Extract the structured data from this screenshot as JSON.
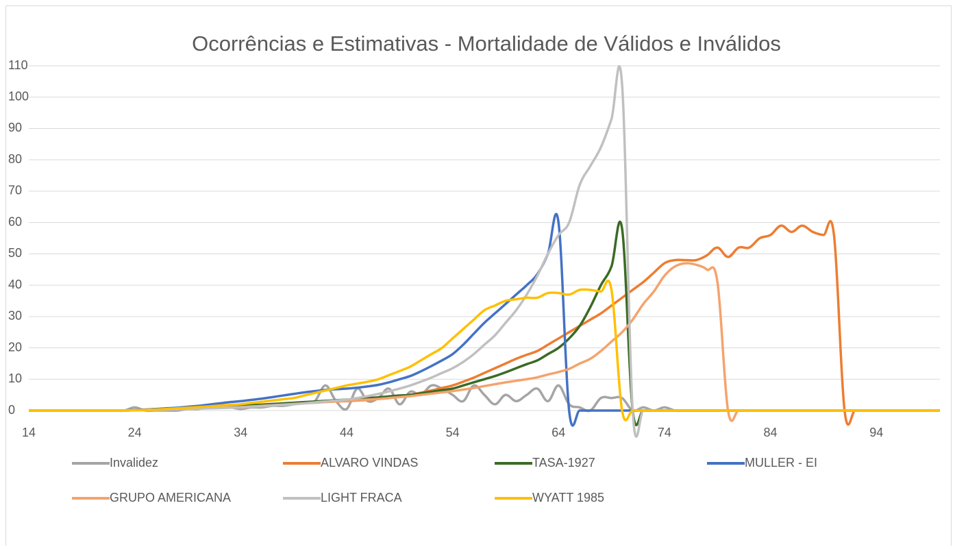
{
  "chart_data": {
    "type": "line",
    "title": "Ocorrências e Estimativas - Mortalidade de Válidos e Inválidos",
    "x": [
      14,
      15,
      16,
      17,
      18,
      19,
      20,
      21,
      22,
      23,
      24,
      25,
      26,
      27,
      28,
      29,
      30,
      31,
      32,
      33,
      34,
      35,
      36,
      37,
      38,
      39,
      40,
      41,
      42,
      43,
      44,
      45,
      46,
      47,
      48,
      49,
      50,
      51,
      52,
      53,
      54,
      55,
      56,
      57,
      58,
      59,
      60,
      61,
      62,
      63,
      64,
      65,
      66,
      67,
      68,
      69,
      70,
      71,
      72,
      73,
      74,
      75,
      76,
      77,
      78,
      79,
      80,
      81,
      82,
      83,
      84,
      85,
      86,
      87,
      88,
      89,
      90,
      91,
      92,
      93,
      94,
      95,
      96,
      97,
      98,
      99,
      100
    ],
    "xlim": [
      14,
      100
    ],
    "xticks": [
      14,
      24,
      34,
      44,
      54,
      64,
      74,
      84,
      94
    ],
    "ylim": [
      0,
      110
    ],
    "yticks": [
      0,
      10,
      20,
      30,
      40,
      50,
      60,
      70,
      80,
      90,
      100,
      110
    ],
    "grid": true,
    "legend": "bottom",
    "series": [
      {
        "name": "Invalidez",
        "color": "#a5a5a5",
        "values": [
          0,
          0,
          0,
          0,
          0,
          0,
          0,
          0,
          0,
          0,
          1,
          0,
          0,
          0,
          0,
          0.5,
          0.5,
          1,
          1,
          1,
          0.5,
          1,
          1,
          1.5,
          1.5,
          2,
          2.5,
          3,
          8,
          3,
          0.5,
          7,
          3,
          4,
          7,
          2,
          6,
          5,
          8,
          7,
          5,
          3,
          8,
          5,
          2,
          5,
          3,
          5,
          7,
          3,
          8,
          2,
          1,
          0,
          4,
          4,
          4,
          0,
          1,
          0,
          1,
          0,
          0,
          0,
          0,
          0,
          0,
          0,
          0,
          0,
          0,
          0,
          0,
          0,
          0,
          0,
          0,
          0,
          0,
          0,
          0,
          0,
          0,
          0,
          0,
          0,
          0
        ]
      },
      {
        "name": "ALVARO VINDAS",
        "color": "#ed7d31",
        "values": [
          0,
          0,
          0,
          0,
          0,
          0,
          0,
          0,
          0,
          0,
          0.2,
          0.3,
          0.4,
          0.5,
          0.6,
          0.8,
          1,
          1.1,
          1.2,
          1.4,
          1.5,
          1.7,
          1.8,
          2,
          2.2,
          2.4,
          2.5,
          2.7,
          2.8,
          2.9,
          3,
          3.2,
          3.4,
          3.7,
          4,
          4.5,
          5,
          5.7,
          6.4,
          7.2,
          8,
          9.2,
          10.5,
          12,
          13.5,
          15,
          16.5,
          17.8,
          19,
          21,
          23,
          25,
          27,
          29,
          31,
          33.5,
          36,
          38.5,
          41,
          44,
          47,
          48,
          48,
          48,
          49.5,
          52,
          49,
          52,
          52,
          55,
          56,
          59,
          57,
          59,
          57,
          56,
          56,
          0,
          0,
          0,
          0,
          0,
          0,
          0,
          0,
          0,
          0
        ]
      },
      {
        "name": "TASA-1927",
        "color": "#3a6b23",
        "values": [
          0,
          0,
          0,
          0,
          0,
          0,
          0,
          0,
          0,
          0,
          0.1,
          0.2,
          0.3,
          0.5,
          0.6,
          0.8,
          1,
          1.1,
          1.3,
          1.4,
          1.5,
          1.7,
          1.9,
          2.1,
          2.3,
          2.5,
          2.7,
          2.9,
          3.1,
          3.3,
          3.5,
          3.7,
          4,
          4.2,
          4.5,
          4.8,
          5,
          5.5,
          6,
          6.5,
          7,
          8,
          9,
          10,
          11,
          12.2,
          13.5,
          14.8,
          16,
          18,
          20,
          23,
          27,
          33,
          40,
          46,
          58,
          0,
          0,
          0,
          0,
          0,
          0,
          0,
          0,
          0,
          0,
          0,
          0,
          0,
          0,
          0,
          0,
          0,
          0,
          0,
          0,
          0,
          0,
          0,
          0,
          0,
          0,
          0,
          0,
          0,
          0
        ]
      },
      {
        "name": "MULLER - EI",
        "color": "#4472c4",
        "values": [
          0,
          0,
          0,
          0,
          0,
          0,
          0,
          0,
          0,
          0,
          0.2,
          0.3,
          0.5,
          0.7,
          0.9,
          1.2,
          1.5,
          1.9,
          2.3,
          2.7,
          3,
          3.4,
          3.8,
          4.3,
          4.8,
          5.3,
          5.8,
          6.2,
          6.6,
          6.8,
          7,
          7.3,
          7.7,
          8.2,
          9,
          10,
          11,
          12.5,
          14.2,
          16,
          18,
          21,
          24.5,
          28,
          31,
          34,
          37,
          40,
          43.5,
          50,
          60,
          0,
          0,
          0,
          0,
          0,
          0,
          0,
          0,
          0,
          0,
          0,
          0,
          0,
          0,
          0,
          0,
          0,
          0,
          0,
          0,
          0,
          0,
          0,
          0,
          0,
          0,
          0,
          0,
          0,
          0,
          0,
          0,
          0,
          0,
          0,
          0
        ]
      },
      {
        "name": "GRUPO AMERICANA",
        "color": "#f4a36c",
        "values": [
          0,
          0,
          0,
          0,
          0,
          0,
          0,
          0,
          0,
          0,
          0.1,
          0.2,
          0.3,
          0.4,
          0.5,
          0.6,
          0.7,
          0.8,
          0.9,
          1,
          1.1,
          1.3,
          1.5,
          1.7,
          1.9,
          2.1,
          2.3,
          2.5,
          2.7,
          2.9,
          3.1,
          3.3,
          3.5,
          3.7,
          4,
          4.3,
          4.6,
          5,
          5.4,
          5.8,
          6.2,
          6.7,
          7.2,
          7.8,
          8.4,
          9,
          9.5,
          10,
          10.6,
          11.5,
          12.3,
          13.3,
          15,
          16.5,
          19,
          22,
          25,
          29,
          34,
          38,
          43,
          46,
          47,
          46.5,
          45,
          41,
          0,
          0,
          0,
          0,
          0,
          0,
          0,
          0,
          0,
          0,
          0,
          0,
          0,
          0,
          0,
          0,
          0,
          0,
          0,
          0,
          0
        ]
      },
      {
        "name": "LIGHT FRACA",
        "color": "#c0c0c0",
        "values": [
          0,
          0,
          0,
          0,
          0,
          0,
          0,
          0,
          0,
          0,
          0.1,
          0.1,
          0.2,
          0.3,
          0.4,
          0.5,
          0.6,
          0.7,
          0.8,
          0.9,
          1,
          1.2,
          1.4,
          1.6,
          1.8,
          2,
          2.3,
          2.6,
          2.9,
          3.2,
          3.5,
          4,
          4.6,
          5.3,
          6.1,
          7,
          8,
          9.2,
          10.5,
          12,
          13.5,
          15.5,
          18,
          21,
          24,
          28,
          32,
          37,
          43,
          50,
          56,
          60,
          72,
          78,
          84,
          93,
          104,
          0,
          0,
          0,
          0,
          0,
          0,
          0,
          0,
          0,
          0,
          0,
          0,
          0,
          0,
          0,
          0,
          0,
          0,
          0,
          0,
          0,
          0,
          0,
          0,
          0,
          0,
          0,
          0,
          0,
          0
        ]
      },
      {
        "name": "WYATT 1985",
        "color": "#ffc000",
        "values": [
          0,
          0,
          0,
          0,
          0,
          0,
          0,
          0,
          0,
          0,
          0.1,
          0.2,
          0.3,
          0.5,
          0.7,
          0.9,
          1.1,
          1.3,
          1.6,
          1.8,
          2,
          2.4,
          2.8,
          3.2,
          3.6,
          4,
          4.8,
          5.6,
          6.4,
          7.2,
          8,
          8.6,
          9.2,
          10,
          11.3,
          12.6,
          14,
          16,
          18,
          20,
          23,
          26,
          29,
          32,
          33.5,
          35,
          35.5,
          36,
          36,
          37.5,
          37.5,
          37,
          38.5,
          38.5,
          38,
          38.5,
          0,
          0,
          0,
          0,
          0,
          0,
          0,
          0,
          0,
          0,
          0,
          0,
          0,
          0,
          0,
          0,
          0,
          0,
          0,
          0,
          0,
          0,
          0,
          0,
          0,
          0,
          0,
          0,
          0,
          0,
          0
        ]
      }
    ]
  }
}
